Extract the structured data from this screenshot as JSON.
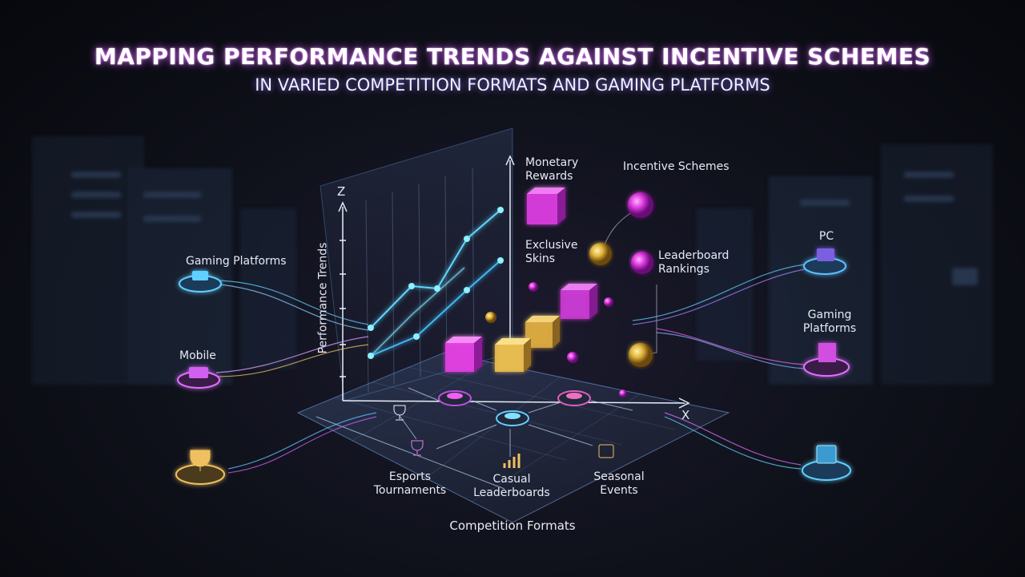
{
  "header": {
    "title": "MAPPING PERFORMANCE TRENDS AGAINST INCENTIVE SCHEMES",
    "subtitle": "IN VARIED COMPETITION FORMATS AND GAMING PLATFORMS"
  },
  "axes": {
    "z": "Z",
    "x": "X",
    "y_label": "Performance Trends",
    "x_label": "Competition Formats"
  },
  "incentives": {
    "title": "Incentive Schemes",
    "items": [
      "Monetary Rewards",
      "Exclusive Skins",
      "Leaderboard Rankings"
    ]
  },
  "platforms_left": {
    "title": "Gaming Platforms",
    "items": [
      "Mobile"
    ]
  },
  "platforms_right": {
    "items": [
      "PC",
      "Gaming Platforms"
    ]
  },
  "formats": [
    "Esports Tournaments",
    "Casual Leaderboards",
    "Seasonal Events"
  ]
}
